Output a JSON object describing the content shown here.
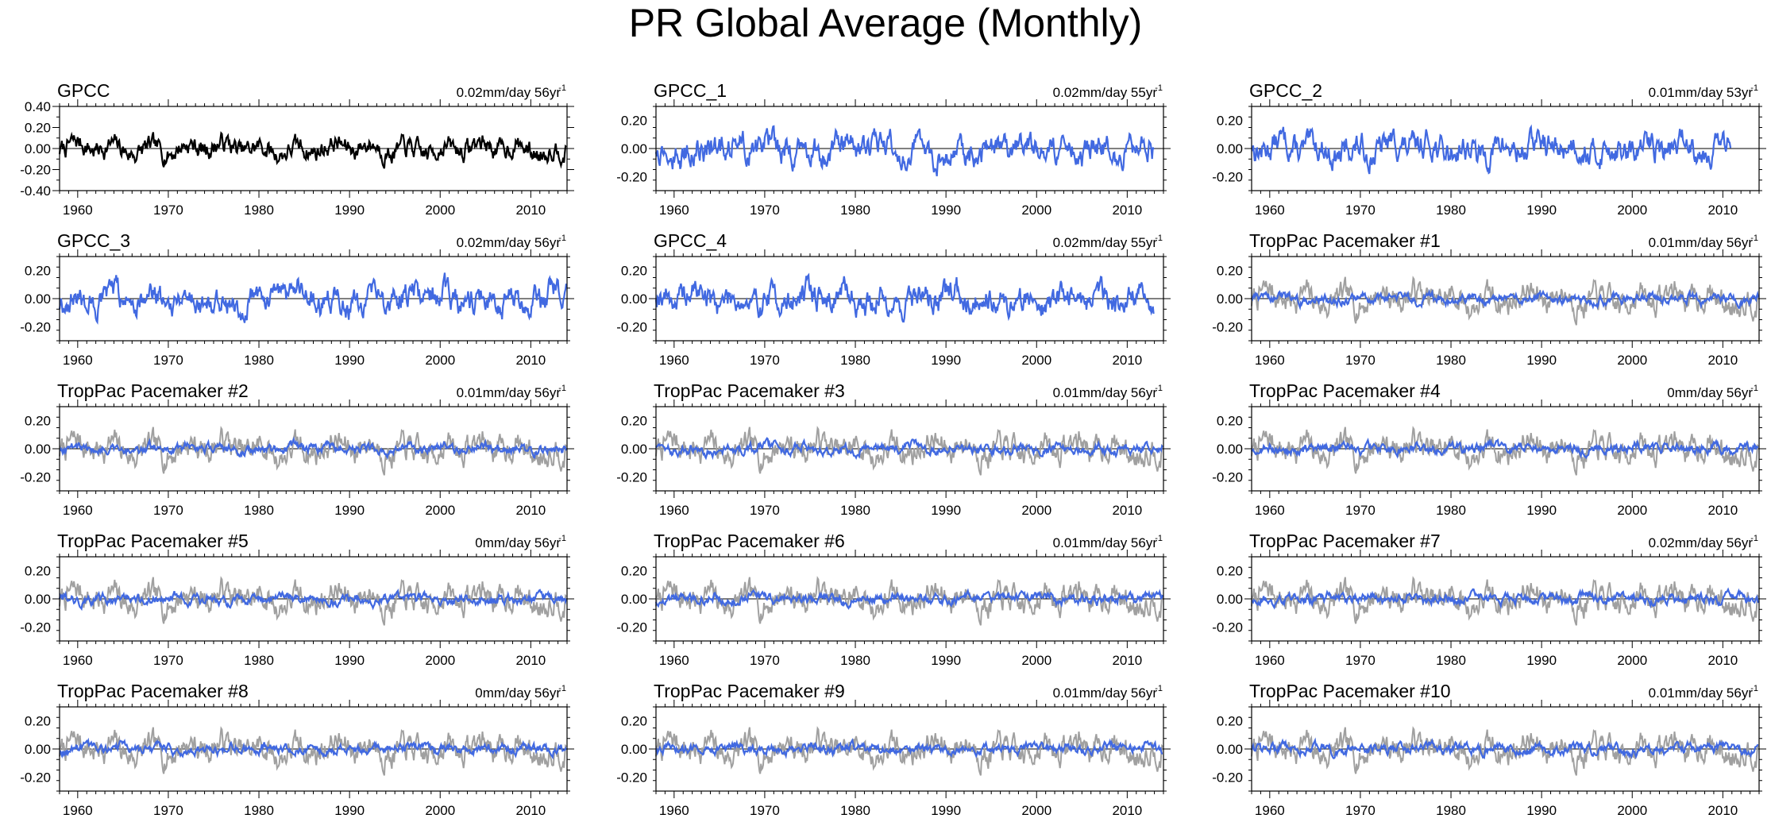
{
  "title": "PR Global Average (Monthly)",
  "chart_data": {
    "type": "line",
    "x_ticks": [
      1960,
      1970,
      1980,
      1990,
      2000,
      2010
    ],
    "xlim": [
      1958,
      2014
    ],
    "colors": {
      "observed": "#000000",
      "ensemble": "#4169e1",
      "reference": "#a0a0a0"
    },
    "panels": [
      {
        "title": "GPCC",
        "trend": "0.02mm/day 56yr",
        "trend_unit": "-1",
        "y_ticks": [
          "0.40",
          "0.20",
          "0.00",
          "-0.20",
          "-0.40"
        ],
        "ylim": [
          -0.4,
          0.4
        ],
        "y_tick_values": [
          0.4,
          0.2,
          0.0,
          -0.2,
          -0.4
        ],
        "series": "observed",
        "start": 1958,
        "end": 2014,
        "amp": 0.1
      },
      {
        "title": "GPCC_1",
        "trend": "0.02mm/day 55yr",
        "trend_unit": "-1",
        "y_ticks": [
          "0.20",
          "0.00",
          "-0.20"
        ],
        "ylim": [
          -0.3,
          0.3
        ],
        "y_tick_values": [
          0.2,
          0.0,
          -0.2
        ],
        "series": "ensemble",
        "start": 1958,
        "end": 2013,
        "amp": 0.1
      },
      {
        "title": "GPCC_2",
        "trend": "0.01mm/day 53yr",
        "trend_unit": "-1",
        "y_ticks": [
          "0.20",
          "0.00",
          "-0.20"
        ],
        "ylim": [
          -0.3,
          0.3
        ],
        "y_tick_values": [
          0.2,
          0.0,
          -0.2
        ],
        "series": "ensemble",
        "start": 1958,
        "end": 2011,
        "amp": 0.1
      },
      {
        "title": "GPCC_3",
        "trend": "0.02mm/day 56yr",
        "trend_unit": "-1",
        "y_ticks": [
          "0.20",
          "0.00",
          "-0.20"
        ],
        "ylim": [
          -0.3,
          0.3
        ],
        "y_tick_values": [
          0.2,
          0.0,
          -0.2
        ],
        "series": "ensemble",
        "start": 1958,
        "end": 2014,
        "amp": 0.1
      },
      {
        "title": "GPCC_4",
        "trend": "0.02mm/day 55yr",
        "trend_unit": "-1",
        "y_ticks": [
          "0.20",
          "0.00",
          "-0.20"
        ],
        "ylim": [
          -0.3,
          0.3
        ],
        "y_tick_values": [
          0.2,
          0.0,
          -0.2
        ],
        "series": "ensemble",
        "start": 1958,
        "end": 2013,
        "amp": 0.1
      },
      {
        "title": "TropPac Pacemaker #1",
        "trend": "0.01mm/day 56yr",
        "trend_unit": "-1",
        "y_ticks": [
          "0.20",
          "0.00",
          "-0.20"
        ],
        "ylim": [
          -0.3,
          0.3
        ],
        "y_tick_values": [
          0.2,
          0.0,
          -0.2
        ],
        "series": "pacemaker",
        "start": 1958,
        "end": 2014,
        "amp": 0.035
      },
      {
        "title": "TropPac Pacemaker #2",
        "trend": "0.01mm/day 56yr",
        "trend_unit": "-1",
        "y_ticks": [
          "0.20",
          "0.00",
          "-0.20"
        ],
        "ylim": [
          -0.3,
          0.3
        ],
        "y_tick_values": [
          0.2,
          0.0,
          -0.2
        ],
        "series": "pacemaker",
        "start": 1958,
        "end": 2014,
        "amp": 0.035
      },
      {
        "title": "TropPac Pacemaker #3",
        "trend": "0.01mm/day 56yr",
        "trend_unit": "-1",
        "y_ticks": [
          "0.20",
          "0.00",
          "-0.20"
        ],
        "ylim": [
          -0.3,
          0.3
        ],
        "y_tick_values": [
          0.2,
          0.0,
          -0.2
        ],
        "series": "pacemaker",
        "start": 1958,
        "end": 2014,
        "amp": 0.035
      },
      {
        "title": "TropPac Pacemaker #4",
        "trend": "0mm/day 56yr",
        "trend_unit": "-1",
        "y_ticks": [
          "0.20",
          "0.00",
          "-0.20"
        ],
        "ylim": [
          -0.3,
          0.3
        ],
        "y_tick_values": [
          0.2,
          0.0,
          -0.2
        ],
        "series": "pacemaker",
        "start": 1958,
        "end": 2014,
        "amp": 0.035
      },
      {
        "title": "TropPac Pacemaker #5",
        "trend": "0mm/day 56yr",
        "trend_unit": "-1",
        "y_ticks": [
          "0.20",
          "0.00",
          "-0.20"
        ],
        "ylim": [
          -0.3,
          0.3
        ],
        "y_tick_values": [
          0.2,
          0.0,
          -0.2
        ],
        "series": "pacemaker",
        "start": 1958,
        "end": 2014,
        "amp": 0.035
      },
      {
        "title": "TropPac Pacemaker #6",
        "trend": "0.01mm/day 56yr",
        "trend_unit": "-1",
        "y_ticks": [
          "0.20",
          "0.00",
          "-0.20"
        ],
        "ylim": [
          -0.3,
          0.3
        ],
        "y_tick_values": [
          0.2,
          0.0,
          -0.2
        ],
        "series": "pacemaker",
        "start": 1958,
        "end": 2014,
        "amp": 0.035
      },
      {
        "title": "TropPac Pacemaker #7",
        "trend": "0.02mm/day 56yr",
        "trend_unit": "-1",
        "y_ticks": [
          "0.20",
          "0.00",
          "-0.20"
        ],
        "ylim": [
          -0.3,
          0.3
        ],
        "y_tick_values": [
          0.2,
          0.0,
          -0.2
        ],
        "series": "pacemaker",
        "start": 1958,
        "end": 2014,
        "amp": 0.035
      },
      {
        "title": "TropPac Pacemaker #8",
        "trend": "0mm/day 56yr",
        "trend_unit": "-1",
        "y_ticks": [
          "0.20",
          "0.00",
          "-0.20"
        ],
        "ylim": [
          -0.3,
          0.3
        ],
        "y_tick_values": [
          0.2,
          0.0,
          -0.2
        ],
        "series": "pacemaker",
        "start": 1958,
        "end": 2014,
        "amp": 0.035
      },
      {
        "title": "TropPac Pacemaker #9",
        "trend": "0.01mm/day 56yr",
        "trend_unit": "-1",
        "y_ticks": [
          "0.20",
          "0.00",
          "-0.20"
        ],
        "ylim": [
          -0.3,
          0.3
        ],
        "y_tick_values": [
          0.2,
          0.0,
          -0.2
        ],
        "series": "pacemaker",
        "start": 1958,
        "end": 2014,
        "amp": 0.035
      },
      {
        "title": "TropPac Pacemaker #10",
        "trend": "0.01mm/day 56yr",
        "trend_unit": "-1",
        "y_ticks": [
          "0.20",
          "0.00",
          "-0.20"
        ],
        "ylim": [
          -0.3,
          0.3
        ],
        "y_tick_values": [
          0.2,
          0.0,
          -0.2
        ],
        "series": "pacemaker",
        "start": 1958,
        "end": 2014,
        "amp": 0.035
      }
    ]
  }
}
